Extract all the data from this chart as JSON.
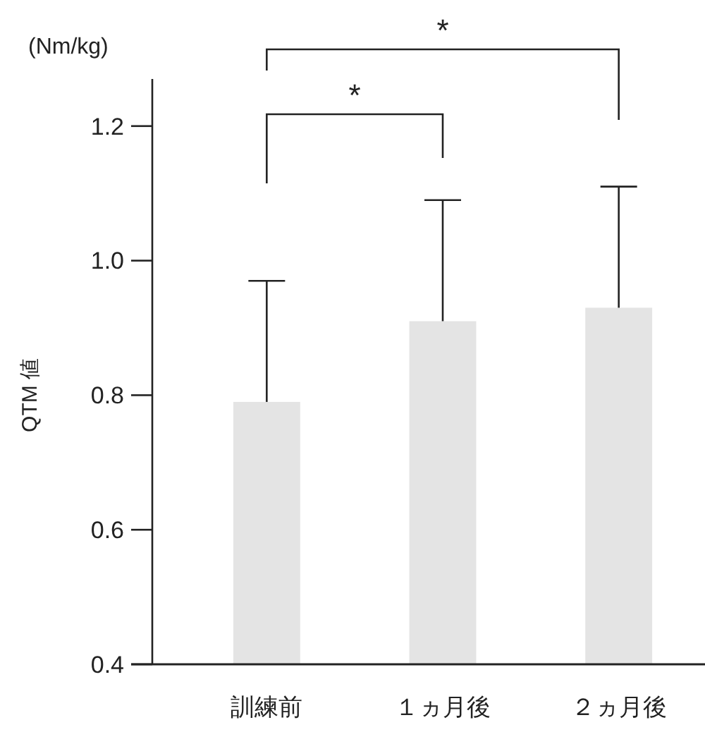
{
  "chart_data": {
    "type": "bar",
    "ylabel": "QTM 値",
    "annotations": [
      "(Nm/kg)",
      "*",
      "*"
    ],
    "categories": [
      "訓練前",
      "１ヵ月後",
      "２ヵ月後"
    ],
    "values": [
      0.79,
      0.91,
      0.93
    ],
    "errors": [
      [
        0.79,
        0.97
      ],
      [
        0.91,
        1.09
      ],
      [
        0.93,
        1.11
      ]
    ],
    "color": "#e4e4e4",
    "ylim": [
      0.4,
      1.27
    ],
    "yticks": [
      0.4,
      0.6,
      0.8,
      {
        "value": 1,
        "label": "1.0"
      },
      1.2
    ],
    "grid": false
  }
}
